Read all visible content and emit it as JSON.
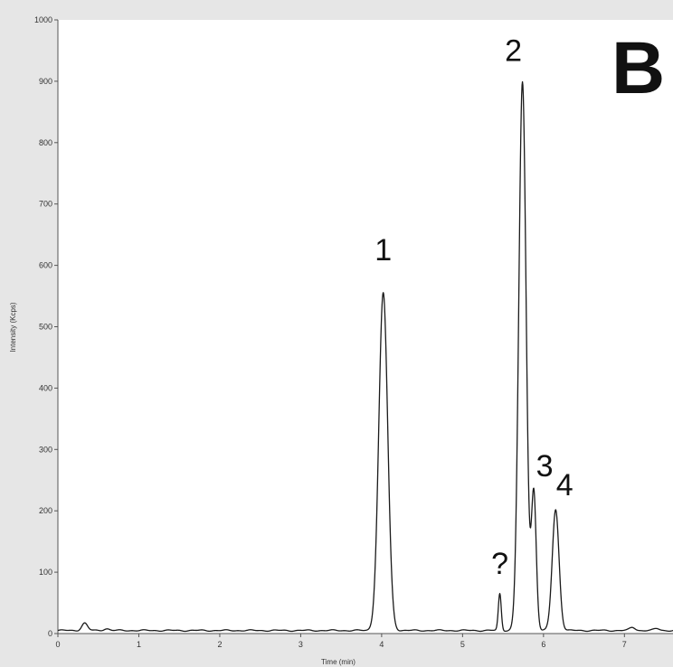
{
  "chart_data": {
    "type": "line",
    "panel_label": "B",
    "xlabel": "Time (min)",
    "ylabel": "Intensity (Kcps)",
    "xlim": [
      0,
      7.6
    ],
    "ylim": [
      0,
      1000
    ],
    "x_ticks": [
      "0",
      "1",
      "2",
      "3",
      "4",
      "5",
      "6",
      "7"
    ],
    "y_ticks": [
      "0",
      "100",
      "200",
      "300",
      "400",
      "500",
      "600",
      "700",
      "800",
      "900",
      "1000"
    ],
    "grid": false,
    "baseline": 5,
    "peaks": [
      {
        "label": "1",
        "x": 4.02,
        "y": 555
      },
      {
        "label": "?",
        "x": 5.46,
        "y": 65
      },
      {
        "label": "2",
        "x": 5.74,
        "y": 898
      },
      {
        "label": "3",
        "x": 5.88,
        "y": 230
      },
      {
        "label": "4",
        "x": 6.15,
        "y": 202
      }
    ],
    "minor_features": [
      {
        "x": 0.33,
        "y": 17
      },
      {
        "x": 0.6,
        "y": 8
      },
      {
        "x": 7.1,
        "y": 10
      },
      {
        "x": 7.4,
        "y": 8
      }
    ],
    "colors": {
      "line": "#1a1a1a",
      "plot_background": "#ffffff",
      "frame_background": "#e6e6e6"
    }
  }
}
